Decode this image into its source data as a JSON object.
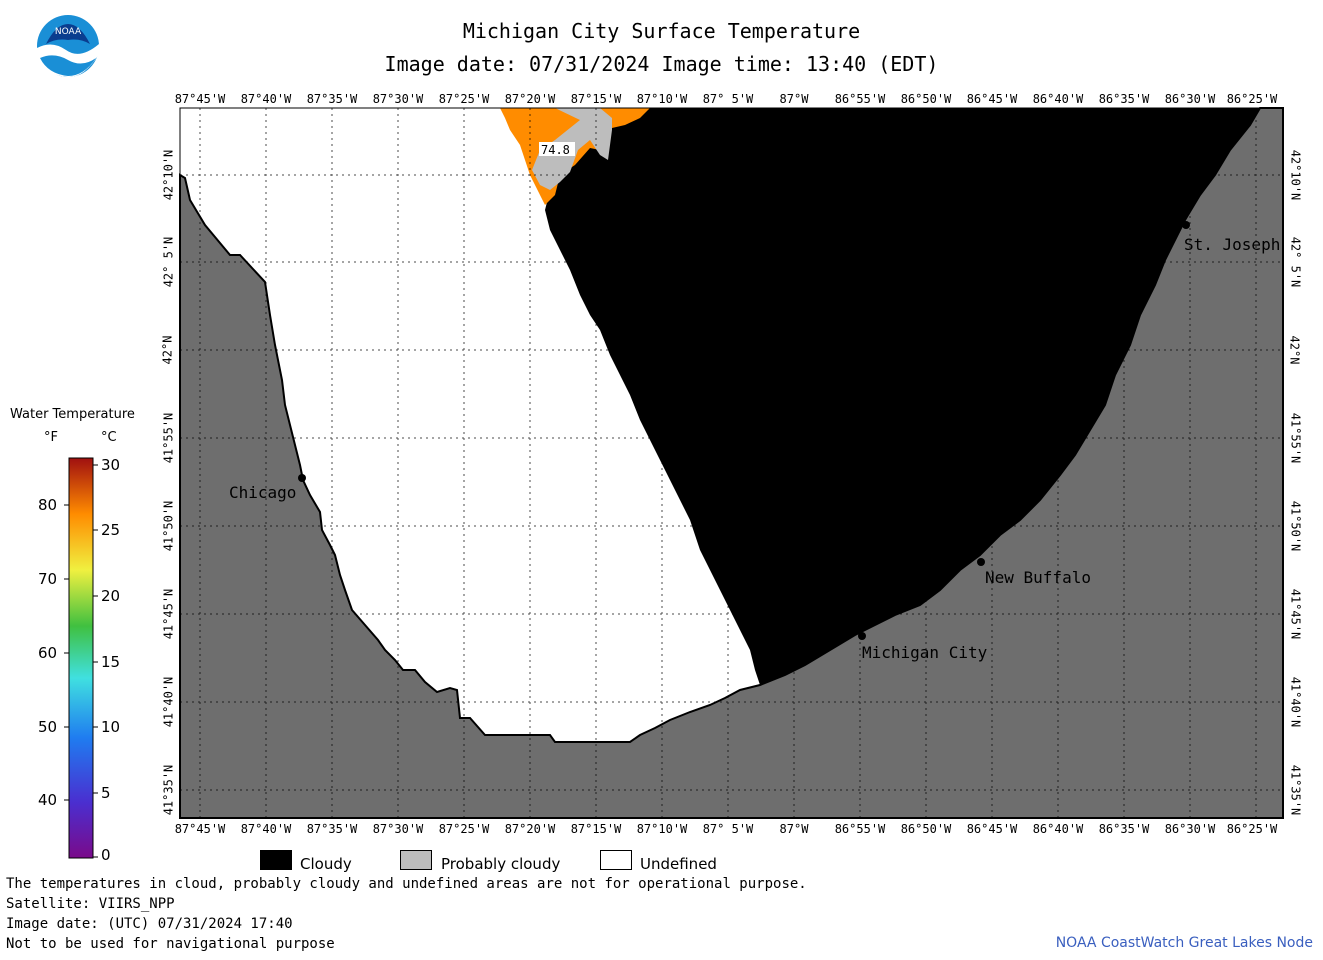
{
  "header": {
    "title": "Michigan City Surface Temperature",
    "subtitle": "Image date: 07/31/2024    Image time: 13:40 (EDT)",
    "logo_text": "NOAA"
  },
  "map": {
    "longitude_labels": [
      "87°45'W",
      "87°40'W",
      "87°35'W",
      "87°30'W",
      "87°25'W",
      "87°20'W",
      "87°15'W",
      "87°10'W",
      "87° 5'W",
      "87°W",
      "86°55'W",
      "86°50'W",
      "86°45'W",
      "86°40'W",
      "86°35'W",
      "86°30'W",
      "86°25'W"
    ],
    "latitude_labels": [
      "42°10'N",
      "42° 5'N",
      "42°N",
      "41°55'N",
      "41°50'N",
      "41°45'N",
      "41°40'N",
      "41°35'N"
    ],
    "places": [
      {
        "name": "Chicago"
      },
      {
        "name": "St. Joseph"
      },
      {
        "name": "New Buffalo"
      },
      {
        "name": "Michigan City"
      }
    ],
    "temperature_label": "74.8",
    "colors": {
      "land": "#6e6e6e",
      "cloudy": "#000000",
      "probably_cloudy": "#bdbdbd",
      "undefined": "#ffffff",
      "warm_water": "#ff8c00"
    }
  },
  "legend": {
    "title": "Water Temperature",
    "unit_f": "°F",
    "unit_c": "°C",
    "f_ticks": [
      "80",
      "70",
      "60",
      "50",
      "40"
    ],
    "c_ticks": [
      "30",
      "25",
      "20",
      "15",
      "10",
      "5",
      "0"
    ],
    "categories": [
      {
        "label": "Cloudy",
        "color": "#000000"
      },
      {
        "label": "Probably cloudy",
        "color": "#bdbdbd"
      },
      {
        "label": "Undefined",
        "color": "#ffffff"
      }
    ]
  },
  "footer": {
    "line1": "The temperatures in cloud, probably cloudy and undefined areas are not for operational purpose.",
    "line2": "Satellite: VIIRS_NPP",
    "line3": "Image date: (UTC) 07/31/2024  17:40",
    "line4": "Not to be used for navigational purpose",
    "credit": "NOAA CoastWatch Great Lakes Node"
  }
}
